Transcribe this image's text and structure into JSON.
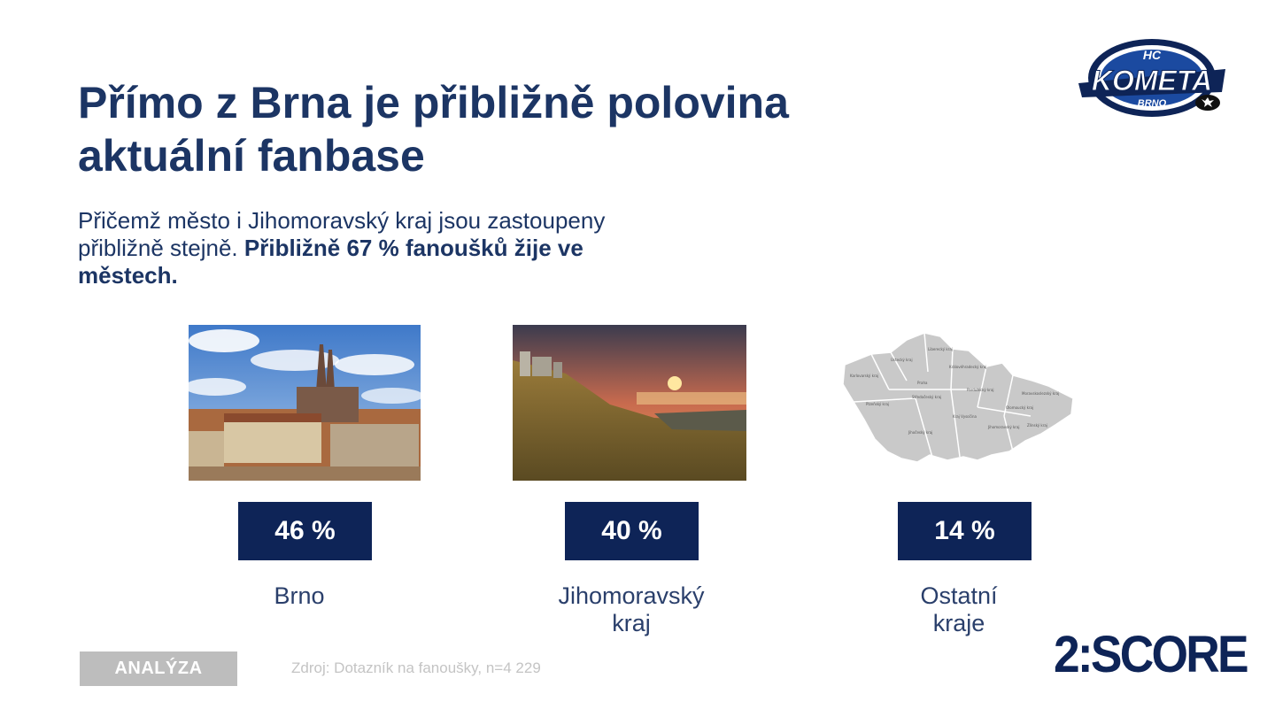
{
  "slide": {
    "title": "Přímo z Brna je přibližně polovina aktuální fanbase",
    "subtitle_regular": "Přičemž město i Jihomoravský kraj jsou zastoupeny přibližně stejně. ",
    "subtitle_bold": "Přibližně 67 % fanoušků žije ve městech."
  },
  "logo": {
    "top": "HC",
    "main": "KOMETA",
    "bottom": "BRNO"
  },
  "stats": [
    {
      "value": "46 %",
      "label_lines": [
        "Brno"
      ]
    },
    {
      "value": "40 %",
      "label_lines": [
        "Jihomoravský",
        "kraj"
      ]
    },
    {
      "value": "14 %",
      "label_lines": [
        "Ostatní",
        "kraje"
      ]
    }
  ],
  "map_labels": [
    "Liberecký kraj",
    "Ústecký kraj",
    "Královéhradecký kraj",
    "Karlovarský kraj",
    "Praha",
    "Pardubický kraj",
    "Moravskoslezský kraj",
    "Středočeský kraj",
    "Plzeňský kraj",
    "Olomoucký kraj",
    "Kraj Vysočina",
    "Zlínský kraj",
    "Jihomoravský kraj",
    "Jihočeský kraj"
  ],
  "footer": {
    "tag": "ANALÝZA",
    "source": "Zdroj: Dotazník na fanoušky, n=4 229",
    "brand": "2:SCORE"
  },
  "colors": {
    "navy": "#0e2457",
    "title": "#1c3564",
    "tag_bg": "#bdbdbd"
  }
}
